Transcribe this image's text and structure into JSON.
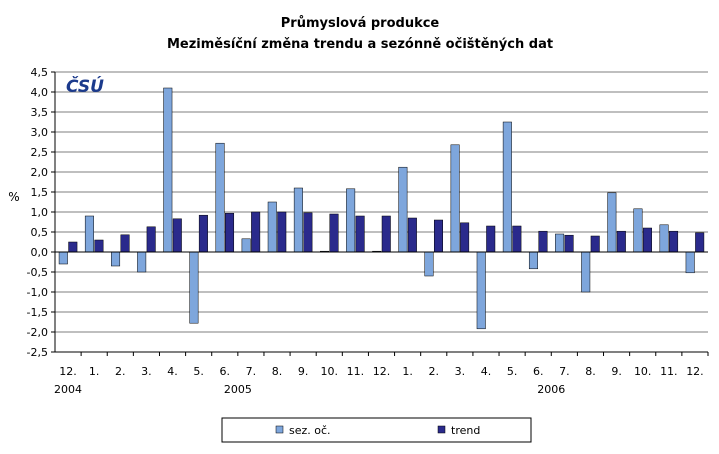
{
  "chart_data": {
    "type": "bar",
    "title": "Průmyslová produkce",
    "subtitle": "Meziměsíční změna trendu a sezónně očištěných dat",
    "ylabel": "%",
    "ylim": [
      -2.5,
      4.5
    ],
    "yticks": [
      "4,5",
      "4,0",
      "3,5",
      "3,0",
      "2,5",
      "2,0",
      "1,5",
      "1,0",
      "0,5",
      "0,0",
      "-0,5",
      "-1,0",
      "-1,5",
      "-2,0",
      "-2,5"
    ],
    "ytick_values": [
      4.5,
      4.0,
      3.5,
      3.0,
      2.5,
      2.0,
      1.5,
      1.0,
      0.5,
      0.0,
      -0.5,
      -1.0,
      -1.5,
      -2.0,
      -2.5
    ],
    "categories": [
      "12.",
      "1.",
      "2.",
      "3.",
      "4.",
      "5.",
      "6.",
      "7.",
      "8.",
      "9.",
      "10.",
      "11.",
      "12.",
      "1.",
      "2.",
      "3.",
      "4.",
      "5.",
      "6.",
      "7.",
      "8.",
      "9.",
      "10.",
      "11.",
      "12."
    ],
    "year_labels": [
      {
        "label": "2004",
        "category_index": 0
      },
      {
        "label": "2005",
        "category_index": 6.5
      },
      {
        "label": "2006",
        "category_index": 18.5
      }
    ],
    "series": [
      {
        "name": "sez. oč.",
        "color": "#7ea6dc",
        "values": [
          -0.3,
          0.9,
          -0.35,
          -0.5,
          4.1,
          -1.78,
          2.72,
          0.33,
          1.25,
          1.6,
          0.02,
          1.58,
          0.02,
          2.12,
          -0.6,
          2.68,
          -1.92,
          3.25,
          -0.42,
          0.45,
          -1.0,
          1.48,
          1.08,
          0.68,
          -0.52
        ]
      },
      {
        "name": "trend",
        "color": "#2a2a8c",
        "values": [
          0.25,
          0.3,
          0.43,
          0.63,
          0.83,
          0.92,
          0.97,
          1.0,
          1.0,
          0.98,
          0.95,
          0.9,
          0.9,
          0.85,
          0.8,
          0.73,
          0.65,
          0.65,
          0.52,
          0.42,
          0.4,
          0.52,
          0.6,
          0.52,
          0.48
        ]
      }
    ],
    "grid": true,
    "legend_position": "bottom",
    "logo": "ČSÚ"
  }
}
